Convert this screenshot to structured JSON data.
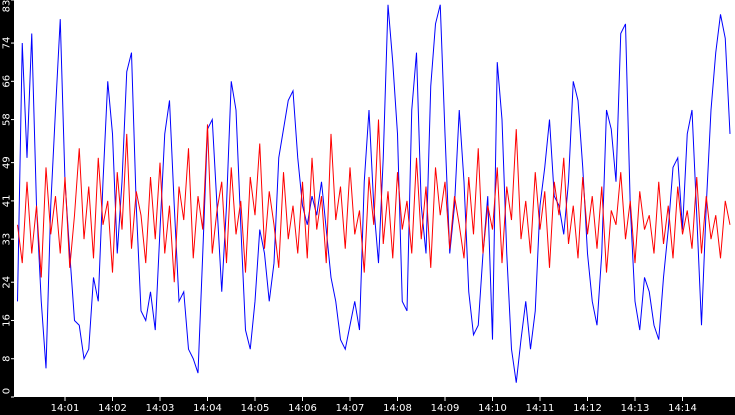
{
  "chart_data": {
    "type": "line",
    "categories": [
      null,
      null,
      null,
      null,
      null,
      null,
      null,
      null,
      null,
      null,
      "14:01",
      null,
      null,
      null,
      null,
      null,
      null,
      null,
      null,
      null,
      "14:02",
      null,
      null,
      null,
      null,
      null,
      null,
      null,
      null,
      null,
      "14:03",
      null,
      null,
      null,
      null,
      null,
      null,
      null,
      null,
      null,
      "14:04",
      null,
      null,
      null,
      null,
      null,
      null,
      null,
      null,
      null,
      "14:05",
      null,
      null,
      null,
      null,
      null,
      null,
      null,
      null,
      null,
      "14:06",
      null,
      null,
      null,
      null,
      null,
      null,
      null,
      null,
      null,
      "14:07",
      null,
      null,
      null,
      null,
      null,
      null,
      null,
      null,
      null,
      "14:08",
      null,
      null,
      null,
      null,
      null,
      null,
      null,
      null,
      null,
      "14:09",
      null,
      null,
      null,
      null,
      null,
      null,
      null,
      null,
      null,
      "14:10",
      null,
      null,
      null,
      null,
      null,
      null,
      null,
      null,
      null,
      "14:11",
      null,
      null,
      null,
      null,
      null,
      null,
      null,
      null,
      null,
      "14:12",
      null,
      null,
      null,
      null,
      null,
      null,
      null,
      null,
      null,
      "14:13",
      null,
      null,
      null,
      null,
      null,
      null,
      null,
      null,
      null,
      "14:14",
      null,
      null,
      null,
      null,
      null,
      null,
      null,
      null,
      null,
      null
    ],
    "series": [
      {
        "color": "#0000ff",
        "values": [
          20,
          74,
          50,
          76,
          40,
          20,
          6,
          40,
          60,
          79,
          45,
          30,
          16,
          15,
          8,
          10,
          25,
          20,
          45,
          66,
          55,
          30,
          45,
          68,
          72,
          40,
          18,
          16,
          22,
          14,
          35,
          55,
          62,
          40,
          20,
          22,
          10,
          8,
          5,
          30,
          56,
          58,
          40,
          22,
          40,
          66,
          60,
          36,
          14,
          10,
          20,
          35,
          30,
          20,
          28,
          50,
          56,
          62,
          64,
          50,
          40,
          36,
          42,
          38,
          45,
          35,
          25,
          20,
          12,
          10,
          15,
          20,
          14,
          45,
          60,
          40,
          28,
          50,
          82,
          70,
          55,
          20,
          18,
          60,
          72,
          40,
          30,
          65,
          78,
          82,
          55,
          30,
          40,
          60,
          45,
          22,
          13,
          15,
          30,
          42,
          12,
          70,
          58,
          30,
          10,
          3,
          12,
          20,
          10,
          18,
          40,
          48,
          58,
          42,
          40,
          34,
          45,
          66,
          62,
          48,
          30,
          20,
          15,
          30,
          60,
          56,
          45,
          76,
          78,
          40,
          20,
          14,
          25,
          22,
          15,
          12,
          25,
          35,
          48,
          50,
          35,
          55,
          60,
          38,
          15,
          40,
          60,
          72,
          80,
          75,
          55
        ]
      },
      {
        "color": "#ff0000",
        "values": [
          36,
          28,
          45,
          30,
          40,
          25,
          48,
          34,
          42,
          30,
          46,
          27,
          38,
          52,
          33,
          44,
          29,
          50,
          36,
          41,
          26,
          47,
          35,
          55,
          31,
          43,
          38,
          28,
          46,
          33,
          49,
          30,
          40,
          24,
          44,
          37,
          52,
          29,
          42,
          35,
          57,
          30,
          39,
          45,
          28,
          48,
          34,
          41,
          26,
          46,
          38,
          53,
          31,
          43,
          36,
          27,
          47,
          33,
          40,
          30,
          45,
          29,
          50,
          35,
          42,
          28,
          55,
          37,
          44,
          31,
          48,
          34,
          39,
          26,
          46,
          36,
          58,
          32,
          43,
          29,
          47,
          35,
          41,
          30,
          50,
          33,
          44,
          27,
          48,
          38,
          45,
          31,
          42,
          36,
          29,
          46,
          34,
          52,
          30,
          40,
          35,
          48,
          28,
          44,
          37,
          56,
          33,
          41,
          30,
          47,
          35,
          43,
          27,
          45,
          38,
          50,
          32,
          40,
          29,
          46,
          34,
          42,
          31,
          44,
          26,
          39,
          36,
          47,
          33,
          41,
          28,
          43,
          35,
          38,
          30,
          45,
          32,
          40,
          29,
          44,
          34,
          39,
          31,
          46,
          30,
          42,
          33,
          38,
          29,
          41,
          36
        ]
      }
    ],
    "ylim": [
      0,
      83
    ],
    "yticks": [
      0,
      8,
      16,
      24,
      33,
      41,
      49,
      58,
      66,
      74,
      83
    ]
  }
}
